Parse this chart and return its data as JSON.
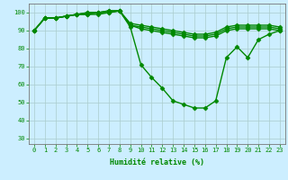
{
  "xlabel": "Humidité relative (%)",
  "background_color": "#cceeff",
  "grid_color": "#aacccc",
  "line_color": "#008800",
  "marker": "D",
  "markersize": 2.5,
  "linewidth": 1.0,
  "x_ticks": [
    0,
    1,
    2,
    3,
    4,
    5,
    6,
    7,
    8,
    9,
    10,
    11,
    12,
    13,
    14,
    15,
    16,
    17,
    18,
    19,
    20,
    21,
    22,
    23
  ],
  "y_ticks": [
    30,
    40,
    50,
    60,
    70,
    80,
    90,
    100
  ],
  "ylim": [
    27,
    105
  ],
  "xlim": [
    -0.5,
    23.5
  ],
  "tick_fontsize": 5.0,
  "xlabel_fontsize": 6.0,
  "lines": [
    [
      90,
      97,
      97,
      98,
      99,
      99,
      99,
      100,
      101,
      92,
      71,
      64,
      58,
      51,
      49,
      47,
      47,
      51,
      75,
      81,
      75,
      85,
      88,
      90
    ],
    [
      90,
      97,
      97,
      98,
      99,
      99,
      100,
      100,
      101,
      93,
      91,
      90,
      89,
      88,
      87,
      86,
      86,
      87,
      90,
      91,
      91,
      91,
      91,
      90
    ],
    [
      90,
      97,
      97,
      98,
      99,
      100,
      100,
      101,
      101,
      93,
      92,
      91,
      90,
      89,
      88,
      87,
      87,
      88,
      91,
      92,
      92,
      92,
      92,
      91
    ],
    [
      90,
      97,
      97,
      98,
      99,
      100,
      100,
      101,
      101,
      94,
      93,
      92,
      91,
      90,
      89,
      88,
      88,
      89,
      92,
      93,
      93,
      93,
      93,
      92
    ]
  ]
}
